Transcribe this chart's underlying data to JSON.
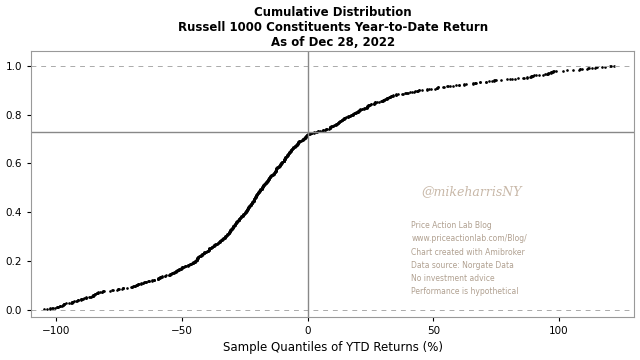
{
  "title_line1": "Cumulative Distribution",
  "title_line2": "Russell 1000 Constituents Year-to-Date Return",
  "title_line3": "As of Dec 28, 2022",
  "xlabel": "Sample Quantiles of YTD Returns (%)",
  "xlim": [
    -110,
    130
  ],
  "ylim": [
    -0.03,
    1.06
  ],
  "xticks": [
    -100,
    -50,
    0,
    50,
    100
  ],
  "yticks": [
    0.0,
    0.2,
    0.4,
    0.6,
    0.8,
    1.0
  ],
  "hline_solid_y": 0.73,
  "hline_dashed_y1": 0.0,
  "hline_dashed_y2": 1.0,
  "vline_x": 0,
  "watermark_text": "@mikeharrisNY",
  "watermark_color": "#c8b8a8",
  "watermark_fontsize": 9,
  "annotation_text": "Price Action Lab Blog\nwww.priceactionlab.com/Blog/\nChart created with Amibroker\nData source: Norgate Data\nNo investment advice\nPerformance is hypothetical",
  "annotation_color": "#b0a090",
  "annotation_fontsize": 5.5,
  "background_color": "#ffffff",
  "curve_color": "#000000",
  "hline_solid_color": "#888888",
  "hline_dashed_color": "#aaaaaa",
  "spine_color": "#999999"
}
